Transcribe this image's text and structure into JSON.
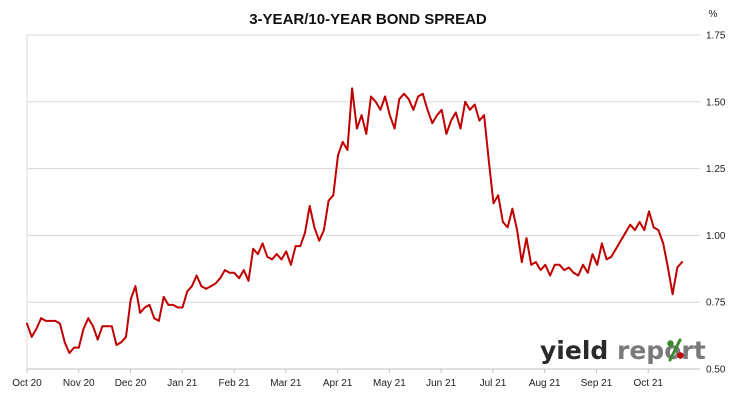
{
  "colors": {
    "series": "#c00000",
    "logo_dark": "#2a2a2a",
    "logo_gray": "#7a7a7a",
    "logo_green": "#3a8a2a",
    "logo_red": "#c00000"
  },
  "logo": {
    "part1": "yield",
    "part2": "report",
    "symbol": "%"
  },
  "chart_data": {
    "type": "line",
    "title": "3-YEAR/10-YEAR BOND SPREAD",
    "unit": "%",
    "xlabel": "",
    "ylabel": "",
    "ylim": [
      0.5,
      1.75
    ],
    "yticks": [
      "0.50",
      "0.75",
      "1.00",
      "1.25",
      "1.50",
      "1.75"
    ],
    "grid": true,
    "legend": "none",
    "month_labels": [
      "Oct 20",
      "Nov 20",
      "Dec 20",
      "Jan 21",
      "Feb 21",
      "Mar 21",
      "Apr 21",
      "May 21",
      "Jun 21",
      "Jul 21",
      "Aug 21",
      "Sep 21",
      "Oct 21"
    ],
    "series": [
      {
        "values": [
          0.67,
          0.62,
          0.65,
          0.69,
          0.68,
          0.68,
          0.68,
          0.67,
          0.6,
          0.56,
          0.58,
          0.58,
          0.65,
          0.69,
          0.66,
          0.61,
          0.66,
          0.66,
          0.66,
          0.59,
          0.6,
          0.62,
          0.76,
          0.81,
          0.71,
          0.73,
          0.74,
          0.69,
          0.68,
          0.77,
          0.74,
          0.74,
          0.73,
          0.73,
          0.79,
          0.81,
          0.85,
          0.81,
          0.8,
          0.81,
          0.82,
          0.84,
          0.87,
          0.86,
          0.86,
          0.84,
          0.87,
          0.83,
          0.95,
          0.93,
          0.97,
          0.92,
          0.91,
          0.93,
          0.91,
          0.94,
          0.89,
          0.96,
          0.96,
          1.01,
          1.11,
          1.03,
          0.98,
          1.02,
          1.13,
          1.15,
          1.3,
          1.35,
          1.32,
          1.55,
          1.4,
          1.45,
          1.38,
          1.52,
          1.5,
          1.47,
          1.52,
          1.45,
          1.4,
          1.51,
          1.53,
          1.51,
          1.47,
          1.52,
          1.53,
          1.47,
          1.42,
          1.45,
          1.47,
          1.38,
          1.43,
          1.46,
          1.4,
          1.5,
          1.47,
          1.49,
          1.43,
          1.45,
          1.28,
          1.12,
          1.15,
          1.05,
          1.03,
          1.1,
          1.02,
          0.9,
          0.99,
          0.89,
          0.9,
          0.87,
          0.89,
          0.85,
          0.89,
          0.89,
          0.87,
          0.88,
          0.86,
          0.85,
          0.89,
          0.86,
          0.93,
          0.89,
          0.97,
          0.91,
          0.92,
          0.95,
          0.98,
          1.01,
          1.04,
          1.02,
          1.05,
          1.02,
          1.09,
          1.03,
          1.02,
          0.97,
          0.88,
          0.78,
          0.88,
          0.9
        ]
      }
    ]
  }
}
